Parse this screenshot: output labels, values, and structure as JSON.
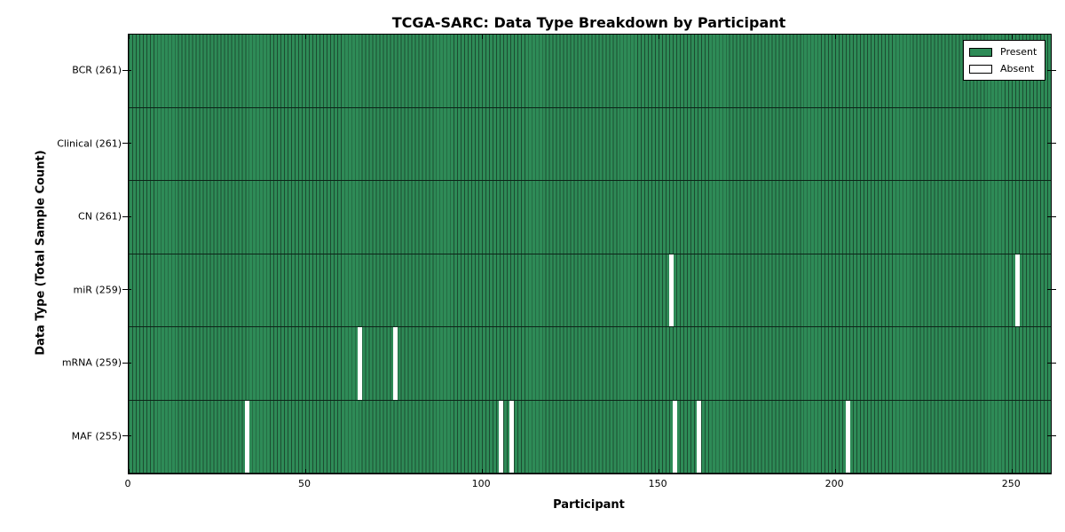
{
  "title": "TCGA-SARC: Data Type Breakdown by Participant",
  "chart_data": {
    "type": "heatmap",
    "title": "TCGA-SARC: Data Type Breakdown by Participant",
    "xlabel": "Participant",
    "ylabel": "Data Type (Total Sample Count)",
    "n_participants": 261,
    "xlim": [
      0,
      261
    ],
    "x_ticks": [
      0,
      50,
      100,
      150,
      200,
      250
    ],
    "grid": false,
    "legend_position": "upper right",
    "rows": [
      {
        "data_type": "BCR",
        "label": "BCR (261)",
        "present_count": 261,
        "absent_participants": []
      },
      {
        "data_type": "Clinical",
        "label": "Clinical (261)",
        "present_count": 261,
        "absent_participants": []
      },
      {
        "data_type": "CN",
        "label": "CN (261)",
        "present_count": 261,
        "absent_participants": []
      },
      {
        "data_type": "miR",
        "label": "miR (259)",
        "present_count": 259,
        "absent_participants": [
          153,
          251
        ]
      },
      {
        "data_type": "mRNA",
        "label": "mRNA (259)",
        "present_count": 259,
        "absent_participants": [
          65,
          75
        ]
      },
      {
        "data_type": "MAF",
        "label": "MAF (255)",
        "present_count": 255,
        "absent_participants": [
          33,
          105,
          108,
          154,
          161,
          203
        ]
      }
    ],
    "legend": [
      {
        "label": "Present",
        "color": "#2e8b57"
      },
      {
        "label": "Absent",
        "color": "#ffffff"
      }
    ],
    "colors": {
      "present": "#2e8b57",
      "absent": "#ffffff",
      "bar_edge": "#1c4c31",
      "row_divider": "#0c2418",
      "axis": "#000000"
    }
  }
}
